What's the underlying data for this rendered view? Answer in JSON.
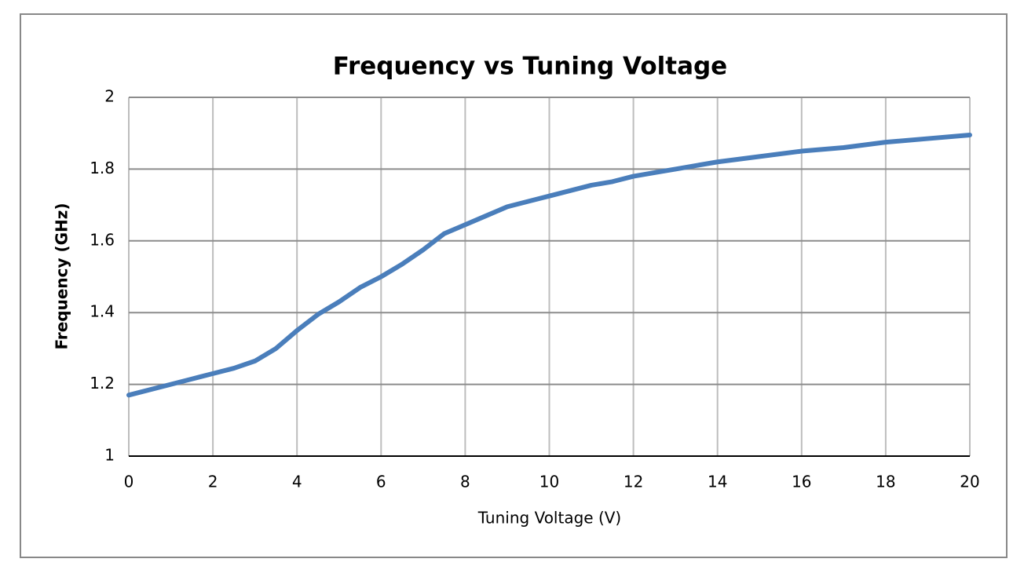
{
  "chart_data": {
    "type": "line",
    "title": "Frequency vs Tuning Voltage",
    "x_label": "Tuning Voltage (V)",
    "y_label": "Frequency (GHz)",
    "x": [
      0,
      0.5,
      1,
      1.5,
      2,
      2.5,
      3,
      3.5,
      4,
      4.5,
      5,
      5.5,
      6,
      6.5,
      7,
      7.5,
      8,
      8.5,
      9,
      9.5,
      10,
      10.5,
      11,
      11.5,
      12,
      12.5,
      13,
      13.5,
      14,
      15,
      16,
      17,
      18,
      19,
      20
    ],
    "values": [
      1.17,
      1.185,
      1.2,
      1.215,
      1.23,
      1.245,
      1.265,
      1.3,
      1.35,
      1.395,
      1.43,
      1.47,
      1.5,
      1.535,
      1.575,
      1.62,
      1.645,
      1.67,
      1.695,
      1.71,
      1.725,
      1.74,
      1.755,
      1.765,
      1.78,
      1.79,
      1.8,
      1.81,
      1.82,
      1.835,
      1.85,
      1.86,
      1.875,
      1.885,
      1.895
    ],
    "color": "#4a7ebb",
    "xlim": [
      0,
      20
    ],
    "xticks": [
      0,
      2,
      4,
      6,
      8,
      10,
      12,
      14,
      16,
      18,
      20
    ],
    "ylim": [
      1,
      2
    ],
    "yticks": [
      1,
      1.2,
      1.4,
      1.6,
      1.8,
      2
    ],
    "grid": true
  }
}
